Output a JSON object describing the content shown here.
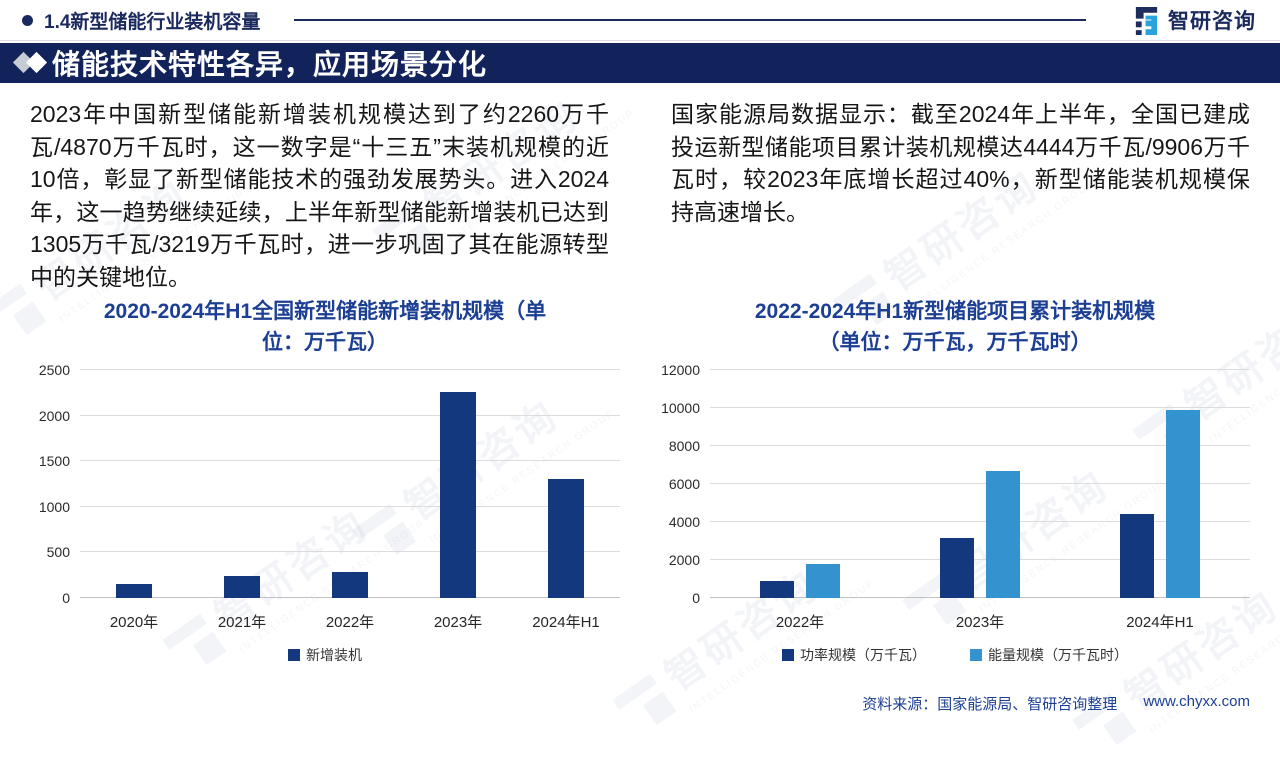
{
  "header": {
    "section_title": "1.4新型储能行业装机容量",
    "brand_name": "智研咨询"
  },
  "banner": {
    "title": "储能技术特性各异，应用场景分化"
  },
  "paragraphs": {
    "left": "2023年中国新型储能新增装机规模达到了约2260万千瓦/4870万千瓦时，这一数字是“十三五”末装机规模的近10倍，彰显了新型储能技术的强劲发展势头。进入2024年，这一趋势继续延续，上半年新型储能新增装机已达到1305万千瓦/3219万千瓦时，进一步巩固了其在能源转型中的关键地位。",
    "right": "国家能源局数据显示：截至2024年上半年，全国已建成投运新型储能项目累计装机规模达4444万千瓦/9906万千瓦时，较2023年底增长超过40%，新型储能装机规模保持高速增长。"
  },
  "chart_data": [
    {
      "type": "bar",
      "title": "2020-2024年H1全国新型储能新增装机规模（单位：万千瓦）",
      "title_lines": [
        "2020-2024年H1全国新型储能新增装机规模（单",
        "位：万千瓦）"
      ],
      "categories": [
        "2020年",
        "2021年",
        "2022年",
        "2023年",
        "2024年H1"
      ],
      "series": [
        {
          "name": "新增装机",
          "color": "#14387E",
          "values": [
            150,
            240,
            290,
            2260,
            1305
          ]
        }
      ],
      "xlabel": "",
      "ylabel": "",
      "ylim": [
        0,
        2500
      ],
      "ytick_step": 500,
      "grid": true,
      "legend_position": "bottom"
    },
    {
      "type": "bar",
      "title": "2022-2024年H1新型储能项目累计装机规模（单位：万千瓦，万千瓦时）",
      "title_lines": [
        "2022-2024年H1新型储能项目累计装机规模",
        "（单位：万千瓦，万千瓦时）"
      ],
      "categories": [
        "2022年",
        "2023年",
        "2024年H1"
      ],
      "series": [
        {
          "name": "功率规模（万千瓦）",
          "color": "#14387E",
          "values": [
            870,
            3139,
            4444
          ]
        },
        {
          "name": "能量规模（万千瓦时）",
          "color": "#3492CE",
          "values": [
            1800,
            6687,
            9906
          ]
        }
      ],
      "xlabel": "",
      "ylabel": "",
      "ylim": [
        0,
        12000
      ],
      "ytick_step": 2000,
      "grid": true,
      "legend_position": "bottom"
    }
  ],
  "watermark": {
    "brand": "智研咨询",
    "subtitle": "INTELLIGENCE RESEARCH GROUP"
  },
  "footer": {
    "source": "资料来源：国家能源局、智研咨询整理",
    "website": "www.chyxx.com"
  }
}
